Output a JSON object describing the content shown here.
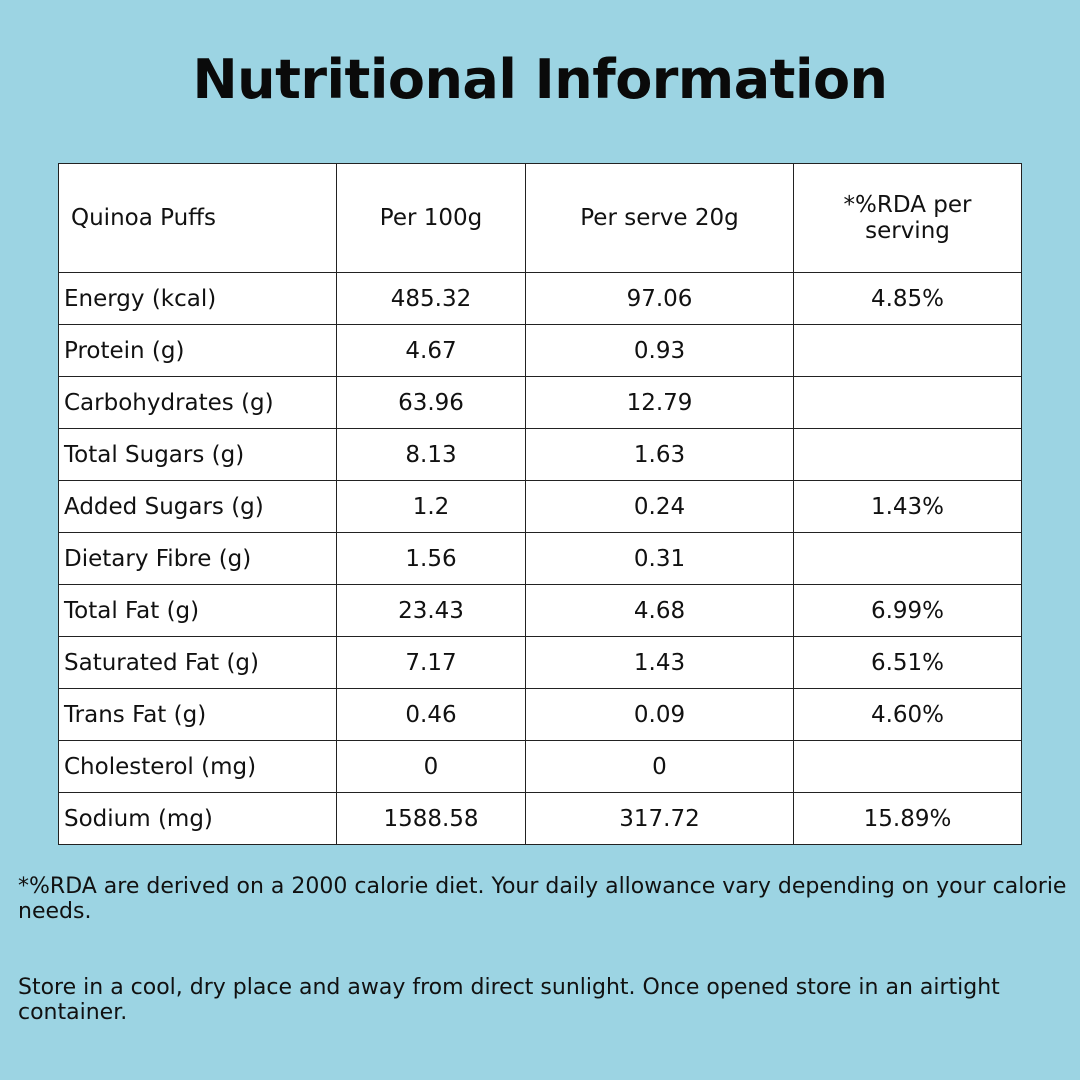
{
  "title": "Nutritional Information",
  "table": {
    "headers": [
      "Quinoa Puffs",
      "Per 100g",
      "Per serve 20g",
      "*%RDA per serving"
    ],
    "rows": [
      {
        "nutrient": "Energy (kcal)",
        "per100": "485.32",
        "perServe": "97.06",
        "rda": "4.85%"
      },
      {
        "nutrient": "Protein (g)",
        "per100": "4.67",
        "perServe": "0.93",
        "rda": ""
      },
      {
        "nutrient": "Carbohydrates (g)",
        "per100": "63.96",
        "perServe": "12.79",
        "rda": ""
      },
      {
        "nutrient": "Total Sugars (g)",
        "per100": "8.13",
        "perServe": "1.63",
        "rda": ""
      },
      {
        "nutrient": "Added Sugars (g)",
        "per100": "1.2",
        "perServe": "0.24",
        "rda": "1.43%"
      },
      {
        "nutrient": "Dietary Fibre (g)",
        "per100": "1.56",
        "perServe": "0.31",
        "rda": ""
      },
      {
        "nutrient": "Total Fat (g)",
        "per100": "23.43",
        "perServe": "4.68",
        "rda": "6.99%"
      },
      {
        "nutrient": "Saturated Fat (g)",
        "per100": "7.17",
        "perServe": "1.43",
        "rda": "6.51%"
      },
      {
        "nutrient": "Trans Fat (g)",
        "per100": "0.46",
        "perServe": "0.09",
        "rda": "4.60%"
      },
      {
        "nutrient": "Cholesterol (mg)",
        "per100": "0",
        "perServe": "0",
        "rda": ""
      },
      {
        "nutrient": "Sodium (mg)",
        "per100": "1588.58",
        "perServe": "317.72",
        "rda": "15.89%"
      }
    ]
  },
  "notes": {
    "rda_note": "*%RDA are derived on a 2000 calorie diet. Your daily allowance vary depending on your calorie needs.",
    "storage_note": "Store in a cool, dry place and away from direct sunlight. Once opened store in an airtight container."
  },
  "colors": {
    "background": "#9cd4e3",
    "table_background": "#ffffff",
    "border": "#222222",
    "text": "#111111"
  }
}
